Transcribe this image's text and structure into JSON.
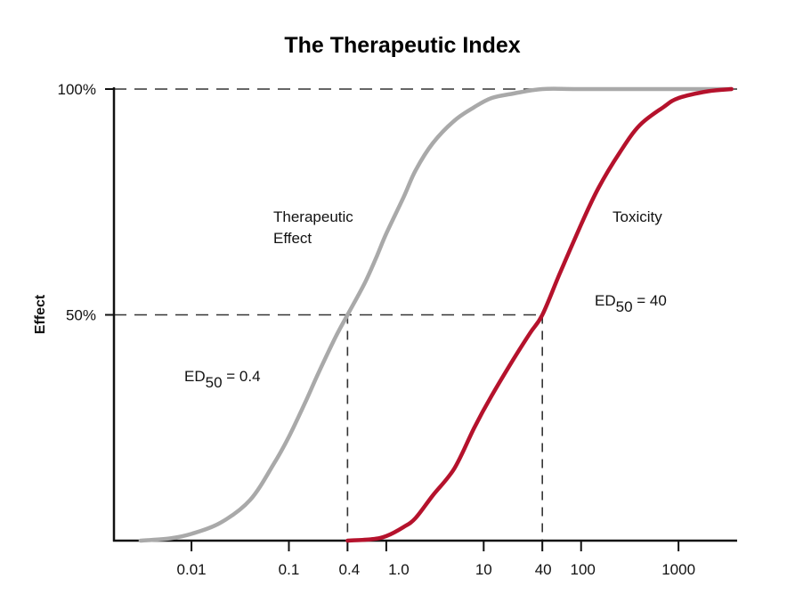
{
  "chart_data": {
    "type": "line",
    "title": "The Therapeutic Index",
    "xlabel": "",
    "ylabel": "Effect",
    "x_scale": "log",
    "xlim": [
      0.0016,
      4000
    ],
    "ylim": [
      0,
      100
    ],
    "y_ticks": [
      {
        "value": 50,
        "label": "50%"
      },
      {
        "value": 100,
        "label": "100%"
      }
    ],
    "x_ticks": [
      {
        "value": 0.01,
        "label": "0.01"
      },
      {
        "value": 0.1,
        "label": "0.1"
      },
      {
        "value": 0.4,
        "label": "0.4"
      },
      {
        "value": 1.0,
        "label": "1.0"
      },
      {
        "value": 10,
        "label": "10"
      },
      {
        "value": 40,
        "label": "40"
      },
      {
        "value": 100,
        "label": "100"
      },
      {
        "value": 1000,
        "label": "1000"
      }
    ],
    "grid": false,
    "series": [
      {
        "name": "Therapeutic Effect",
        "name_lines": [
          "Therapeutic",
          "Effect"
        ],
        "color": "#a9a9a9",
        "ed50": 0.4,
        "ed50_label": "ED",
        "ed50_sub": "50",
        "ed50_suffix": " = 0.4",
        "x": [
          0.003,
          0.006,
          0.01,
          0.02,
          0.04,
          0.07,
          0.1,
          0.15,
          0.2,
          0.3,
          0.4,
          0.6,
          0.8,
          1.0,
          1.5,
          2,
          3,
          5,
          8,
          12,
          20,
          40,
          100,
          1000,
          3500
        ],
        "y": [
          0,
          0.5,
          1.5,
          4,
          9,
          17,
          23,
          31,
          37,
          45,
          50,
          57,
          63,
          68,
          76,
          82,
          88,
          93,
          96,
          98,
          99,
          100,
          100,
          100,
          100
        ]
      },
      {
        "name": "Toxicity",
        "name_lines": [
          "Toxicity"
        ],
        "color": "#b5122c",
        "ed50": 40,
        "ed50_label": "ED",
        "ed50_sub": "50",
        "ed50_suffix": " = 40",
        "x": [
          0.4,
          0.7,
          1.0,
          1.5,
          2,
          3,
          5,
          8,
          12,
          20,
          30,
          40,
          60,
          100,
          150,
          250,
          400,
          700,
          1000,
          2000,
          3500
        ],
        "y": [
          0,
          0.3,
          1,
          3,
          5,
          10,
          16,
          25,
          32,
          40,
          46,
          50,
          59,
          70,
          78,
          86,
          92,
          96,
          98,
          99.5,
          100
        ]
      }
    ],
    "reference_lines": {
      "y_percent": [
        50,
        100
      ],
      "x_values": [
        0.4,
        40
      ]
    }
  }
}
